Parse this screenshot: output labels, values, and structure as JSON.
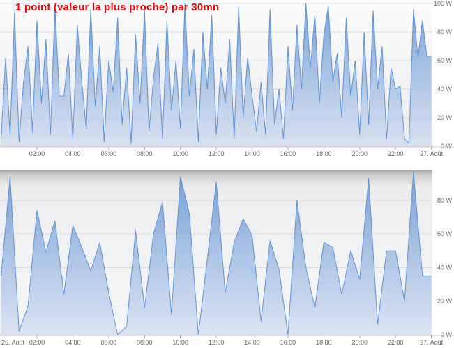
{
  "title": {
    "text": "1 point (valeur la plus proche) par 30mn",
    "color": "#ff0000"
  },
  "colors": {
    "line": "#5f92d4",
    "fill_top": "rgba(106,152,212,0.92)",
    "fill_bottom": "rgba(210,222,240,0.80)",
    "grid": "#d9dbdd",
    "axis_line": "#c9c9c9",
    "tick": "#aaaaaa",
    "label": "#666666",
    "panel_top_bg_start": "#fcfcfc",
    "panel_top_bg_end": "#e9ebed",
    "panel_bottom_bg_shadow": "#a8a8a8",
    "panel_bottom_bg_mid": "#ededef",
    "panel_bottom_bg_end": "#f5f6f8"
  },
  "chart_data": [
    {
      "type": "area",
      "name": "raw-power-chart",
      "title": "",
      "ylabel": "",
      "xlabel": "",
      "y_unit": "W",
      "ylim": [
        0,
        100
      ],
      "interval_minutes": 15,
      "grid": true,
      "legend": "none",
      "y_tick_labels": [
        "0 W",
        "20 W",
        "40 W",
        "60 W",
        "80 W",
        "100 W"
      ],
      "x_ticks": [
        {
          "h": 2,
          "label": "02:00"
        },
        {
          "h": 4,
          "label": "04:00"
        },
        {
          "h": 6,
          "label": "06:00"
        },
        {
          "h": 8,
          "label": "08:00"
        },
        {
          "h": 10,
          "label": "10:00"
        },
        {
          "h": 12,
          "label": "12:00"
        },
        {
          "h": 14,
          "label": "14:00"
        },
        {
          "h": 16,
          "label": "16:00"
        },
        {
          "h": 18,
          "label": "18:00"
        },
        {
          "h": 20,
          "label": "20:00"
        },
        {
          "h": 22,
          "label": "22:00"
        },
        {
          "h": 24,
          "label": "27. Août"
        }
      ],
      "values": [
        5,
        62,
        8,
        94,
        3,
        45,
        70,
        10,
        88,
        30,
        75,
        8,
        98,
        35,
        35,
        65,
        5,
        85,
        45,
        12,
        96,
        28,
        70,
        3,
        60,
        38,
        90,
        15,
        55,
        2,
        78,
        30,
        95,
        10,
        48,
        72,
        5,
        88,
        25,
        60,
        12,
        100,
        35,
        68,
        3,
        80,
        40,
        92,
        8,
        55,
        30,
        75,
        5,
        98,
        20,
        62,
        35,
        10,
        45,
        8,
        96,
        15,
        40,
        5,
        70,
        25,
        85,
        40,
        100,
        55,
        92,
        30,
        78,
        98,
        45,
        65,
        20,
        90,
        35,
        60,
        8,
        80,
        15,
        95,
        40,
        70,
        5,
        55,
        40,
        42,
        5,
        2,
        96,
        62,
        88,
        63,
        63
      ]
    },
    {
      "type": "area",
      "name": "power-per-30mn-chart",
      "title": "",
      "ylabel": "",
      "xlabel": "",
      "y_unit": "W",
      "ylim": [
        0,
        100
      ],
      "interval_minutes": 30,
      "grid": true,
      "legend": "none",
      "y_tick_labels": [
        "0 W",
        "20 W",
        "40 W",
        "60 W",
        "80 W"
      ],
      "x_ticks": [
        {
          "h": 0,
          "label": "26. Août"
        },
        {
          "h": 2,
          "label": "02:00"
        },
        {
          "h": 4,
          "label": "04:00"
        },
        {
          "h": 6,
          "label": "06:00"
        },
        {
          "h": 8,
          "label": "08:00"
        },
        {
          "h": 10,
          "label": "10:00"
        },
        {
          "h": 12,
          "label": "12:00"
        },
        {
          "h": 14,
          "label": "14:00"
        },
        {
          "h": 16,
          "label": "16:00"
        },
        {
          "h": 18,
          "label": "18:00"
        },
        {
          "h": 20,
          "label": "20:00"
        },
        {
          "h": 22,
          "label": "22:00"
        },
        {
          "h": 24,
          "label": "27. Août"
        }
      ],
      "values": [
        35,
        94,
        2,
        17,
        74,
        49,
        68,
        24,
        65,
        52,
        38,
        55,
        25,
        0,
        5,
        62,
        16,
        60,
        79,
        12,
        94,
        72,
        0,
        45,
        91,
        25,
        55,
        69,
        59,
        8,
        56,
        39,
        0,
        80,
        40,
        16,
        55,
        52,
        24,
        50,
        33,
        93,
        6,
        50,
        50,
        20,
        97,
        35,
        35
      ]
    }
  ]
}
